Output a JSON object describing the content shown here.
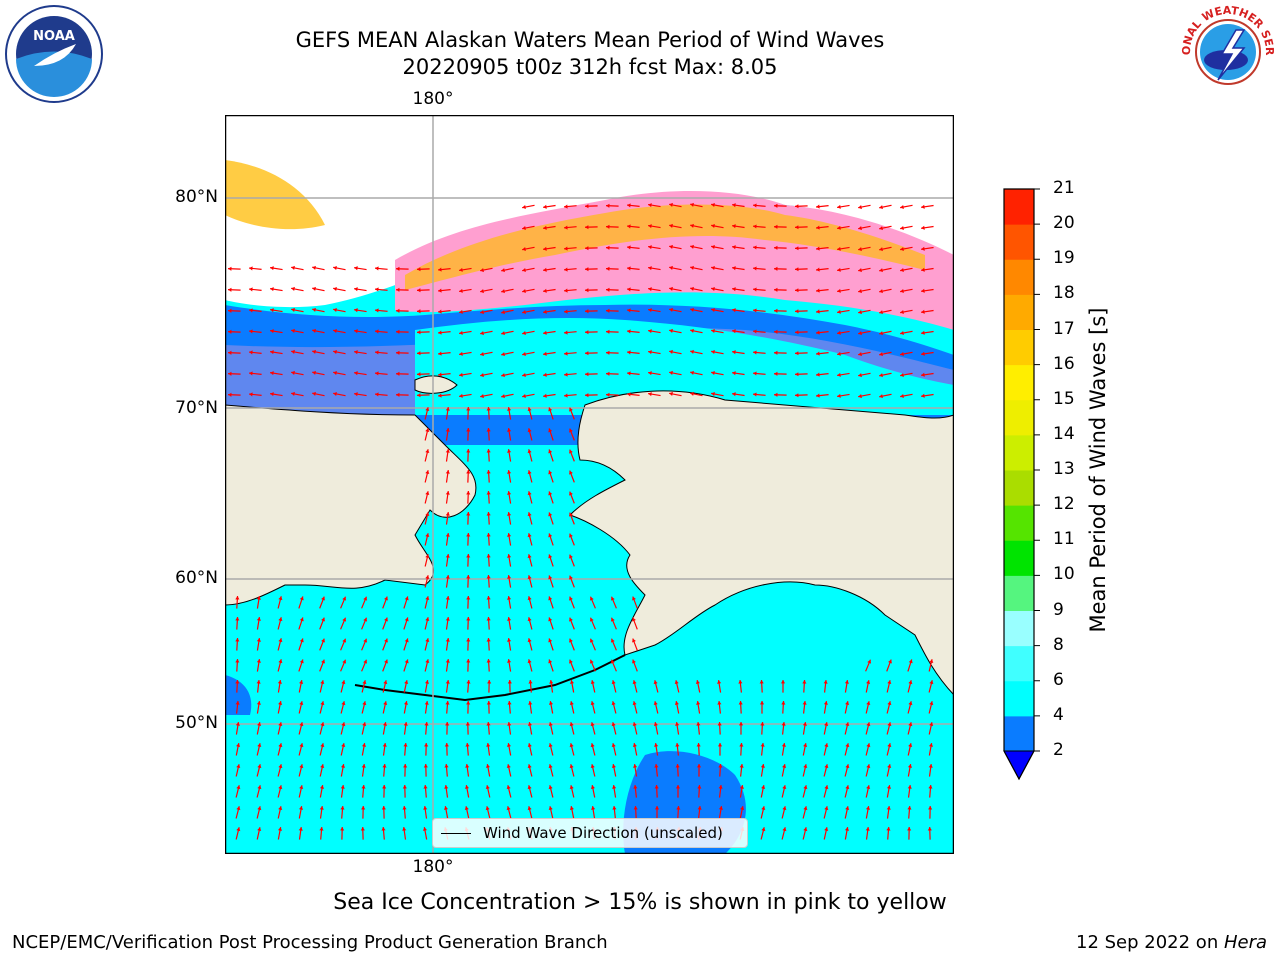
{
  "header": {
    "title_line1": "GEFS MEAN Alaskan Waters Mean Period of Wind Waves",
    "title_line2": "20220905 t00z 312h fcst   Max: 8.05"
  },
  "logos": {
    "left": {
      "icon": "noaa-logo",
      "text": "NOAA"
    },
    "right": {
      "icon": "national-weather-service-logo",
      "text": "NATIONAL WEATHER SERVICE"
    }
  },
  "map": {
    "lat_labels": [
      "80°N",
      "70°N",
      "60°N",
      "50°N"
    ],
    "lon_label_top": "180°",
    "lon_label_bottom": "180°",
    "legend_label": "Wind Wave Direction (unscaled)",
    "arrow_color": "#ff0000",
    "land_color": "#efecdc",
    "ocean_main_color": "#00ffff"
  },
  "colorbar": {
    "title": "Mean Period of Wind Waves [s]",
    "ticks": [
      "2",
      "4",
      "6",
      "8",
      "9",
      "10",
      "11",
      "12",
      "13",
      "14",
      "15",
      "16",
      "17",
      "18",
      "19",
      "20",
      "21"
    ],
    "colors": [
      "#0a7cff",
      "#00ffff",
      "#40ffff",
      "#99ffff",
      "#55f57f",
      "#00e400",
      "#55e400",
      "#aadd00",
      "#ccee00",
      "#eeee00",
      "#ffee00",
      "#ffcc00",
      "#ffaa00",
      "#ff8800",
      "#ff5500",
      "#ff2200",
      "#ff0000"
    ],
    "extend_color": "#0000ff"
  },
  "note": "Sea Ice Concentration > 15% is shown in pink to yellow",
  "footer": {
    "left": "NCEP/EMC/Verification Post Processing Product Generation Branch",
    "date": "12 Sep 2022 on ",
    "machine": "Hera"
  }
}
